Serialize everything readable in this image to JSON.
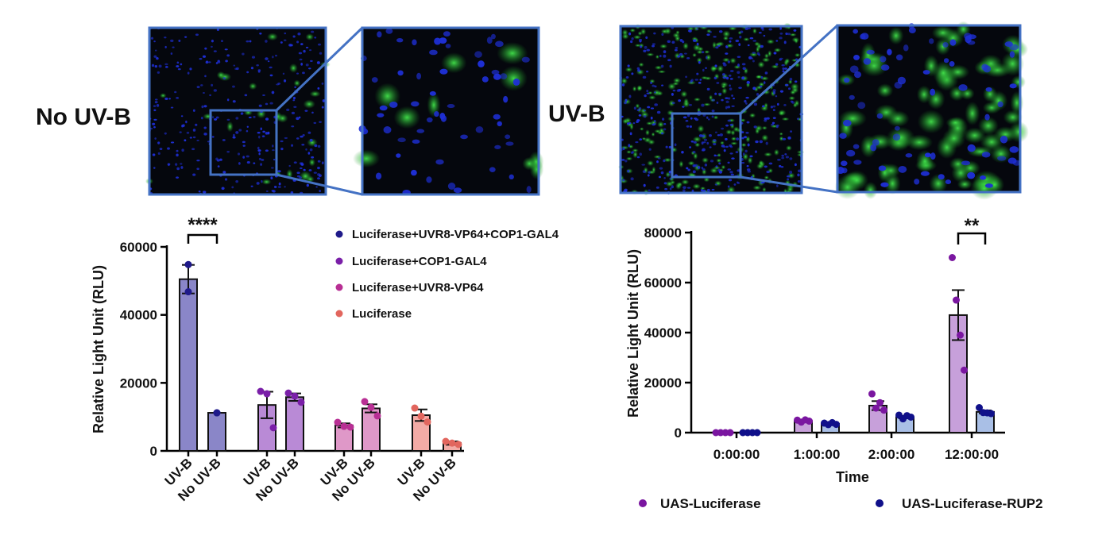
{
  "figure": {
    "panel_left_label": "No UV-B",
    "panel_right_label": "UV-B"
  },
  "micrographs": {
    "frame_color": "#4472c4",
    "cell_nucleus_color": "#1e2fd6",
    "cell_reporter_color": "#2fd43a",
    "background_color": "#05070d"
  },
  "chart_data": [
    {
      "type": "bar",
      "ylabel": "Relative Light Unit (RLU)",
      "ylim": [
        0,
        60000
      ],
      "yticks": [
        0,
        20000,
        40000,
        60000
      ],
      "ytick_labels": [
        "0",
        "20000",
        "40000",
        "60000"
      ],
      "categories": [
        "UV-B",
        "No UV-B",
        "UV-B",
        "No UV-B",
        "UV-B",
        "No UV-B",
        "UV-B",
        "No UV-B"
      ],
      "groups": [
        {
          "legend": "Luciferase+UVR8-VP64+COP1-GAL4",
          "dot_color": "#1f1a8a",
          "bar_color": "#8a86c8",
          "bars": [
            {
              "value": 50500,
              "err": 4200,
              "points": [
                54800,
                46800
              ]
            },
            {
              "value": 11200,
              "err": 0,
              "points": [
                11200,
                11200
              ]
            }
          ]
        },
        {
          "legend": "Luciferase+COP1-GAL4",
          "dot_color": "#7a1fa8",
          "bar_color": "#b98ad6",
          "bars": [
            {
              "value": 13500,
              "err": 3900,
              "points": [
                17500,
                16800,
                6800
              ]
            },
            {
              "value": 15800,
              "err": 1100,
              "points": [
                17000,
                16100,
                14300
              ]
            }
          ]
        },
        {
          "legend": "Luciferase+UVR8-VP64",
          "dot_color": "#b82f94",
          "bar_color": "#df98c8",
          "bars": [
            {
              "value": 7500,
              "err": 600,
              "points": [
                8400,
                7200,
                7000
              ]
            },
            {
              "value": 12500,
              "err": 1200,
              "points": [
                14500,
                12800,
                10300
              ]
            }
          ]
        },
        {
          "legend": "Luciferase",
          "dot_color": "#e2665e",
          "bar_color": "#f3aba6",
          "bars": [
            {
              "value": 10500,
              "err": 1700,
              "points": [
                12600,
                10200,
                8500
              ]
            },
            {
              "value": 2300,
              "err": 500,
              "points": [
                2800,
                2300,
                1900
              ]
            }
          ]
        }
      ],
      "significance": [
        {
          "bars": [
            0,
            1
          ],
          "label": "****"
        }
      ]
    },
    {
      "type": "bar",
      "xlabel": "Time",
      "ylabel": "Relative Light Unit (RLU)",
      "ylim": [
        0,
        80000
      ],
      "yticks": [
        0,
        20000,
        40000,
        60000,
        80000
      ],
      "ytick_labels": [
        "0",
        "20000",
        "40000",
        "60000",
        "80000"
      ],
      "categories": [
        "0:00:00",
        "1:00:00",
        "2:00:00",
        "12:00:00"
      ],
      "series": [
        {
          "name": "UAS-Luciferase",
          "dot_color": "#7a16a0",
          "bar_color": "#c7a0da",
          "values": [
            0,
            4600,
            10800,
            47000
          ],
          "err": [
            0,
            300,
            1800,
            10000
          ],
          "points": [
            [
              0,
              0,
              0,
              0
            ],
            [
              5000,
              4200,
              5100,
              4600
            ],
            [
              15500,
              9800,
              12000,
              9000
            ],
            [
              70000,
              53000,
              39000,
              25000
            ]
          ]
        },
        {
          "name": "UAS-Luciferase-RUP2",
          "dot_color": "#10108a",
          "bar_color": "#a9bfe6",
          "values": [
            0,
            3500,
            6200,
            8300
          ],
          "err": [
            0,
            200,
            500,
            600
          ],
          "points": [
            [
              0,
              0,
              0,
              0
            ],
            [
              3800,
              3200,
              4000,
              3300
            ],
            [
              7000,
              5500,
              6800,
              6200
            ],
            [
              10000,
              8000,
              7900,
              7600
            ]
          ]
        }
      ],
      "significance": [
        {
          "category_index": 3,
          "label": "**"
        }
      ]
    }
  ]
}
